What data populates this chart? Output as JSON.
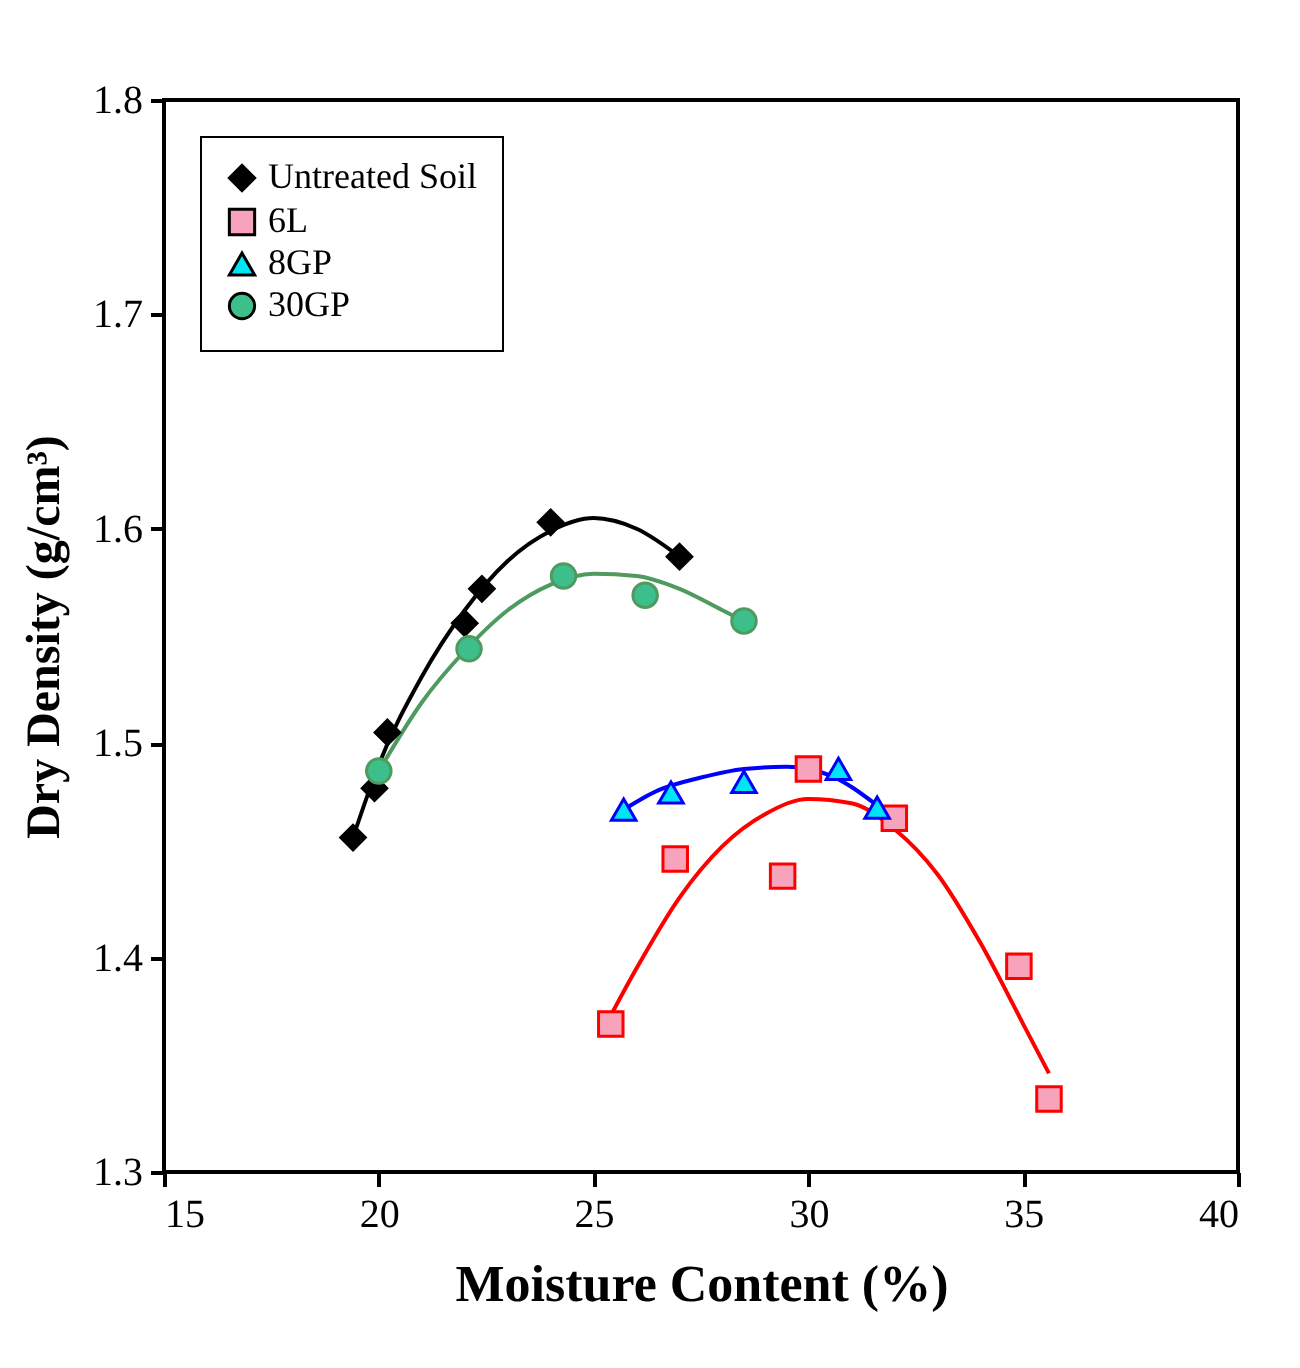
{
  "chart_data": {
    "type": "scatter",
    "xlabel": "Moisture Content (%)",
    "ylabel": "Dry Density (g/cm³)",
    "xlim": [
      15,
      40
    ],
    "xticks": [
      15,
      20,
      25,
      30,
      35,
      40
    ],
    "ylim": [
      1.3,
      1.8
    ],
    "yticks": [
      1.3,
      1.4,
      1.5,
      1.6,
      1.7,
      1.8
    ],
    "grid": false,
    "legend": "top left",
    "series": [
      {
        "name": "Untreated Soil",
        "marker": "diamond",
        "color": "#000000",
        "x": [
          19.4,
          19.9,
          20.2,
          22.0,
          22.4,
          24.0,
          27.0
        ],
        "values": [
          1.456,
          1.479,
          1.505,
          1.556,
          1.572,
          1.603,
          1.587
        ]
      },
      {
        "name": "6L",
        "marker": "square",
        "color": "#f7a3bb",
        "x": [
          25.4,
          26.9,
          29.4,
          30.0,
          32.0,
          34.9,
          35.6
        ],
        "values": [
          1.369,
          1.446,
          1.438,
          1.488,
          1.465,
          1.396,
          1.334
        ]
      },
      {
        "name": "8GP",
        "marker": "triangle",
        "color": "#00e5f5",
        "x": [
          25.7,
          26.8,
          28.5,
          30.7,
          31.6
        ],
        "values": [
          1.469,
          1.477,
          1.482,
          1.488,
          1.47
        ]
      },
      {
        "name": "30GP",
        "marker": "circle",
        "color": "#3cbf8a",
        "x": [
          20.0,
          22.1,
          24.3,
          26.2,
          28.5
        ],
        "values": [
          1.487,
          1.544,
          1.578,
          1.569,
          1.557
        ]
      },
      {
        "type": "line",
        "color": "#000000",
        "x": [
          19.4,
          20,
          21,
          22,
          23,
          24,
          25,
          26,
          27
        ],
        "values": [
          1.456,
          1.49,
          1.531,
          1.562,
          1.585,
          1.599,
          1.605,
          1.6,
          1.587
        ]
      },
      {
        "type": "line",
        "color": "#ff0000",
        "x": [
          25.4,
          26,
          27,
          28,
          29,
          30,
          31,
          32,
          33,
          34,
          35,
          35.6
        ],
        "values": [
          1.373,
          1.395,
          1.428,
          1.452,
          1.467,
          1.474,
          1.472,
          1.46,
          1.439,
          1.407,
          1.369,
          1.346
        ]
      },
      {
        "type": "line",
        "color": "#0000ff",
        "x": [
          25.7,
          26.5,
          27.5,
          28.5,
          29.5,
          30.5,
          31.6
        ],
        "values": [
          1.469,
          1.478,
          1.484,
          1.488,
          1.489,
          1.485,
          1.471
        ]
      },
      {
        "type": "line",
        "color": "#4f9a5f",
        "x": [
          20,
          21,
          22,
          23,
          24,
          25,
          26,
          27,
          28,
          28.5
        ],
        "values": [
          1.487,
          1.519,
          1.543,
          1.562,
          1.574,
          1.579,
          1.578,
          1.572,
          1.562,
          1.557
        ]
      }
    ]
  }
}
